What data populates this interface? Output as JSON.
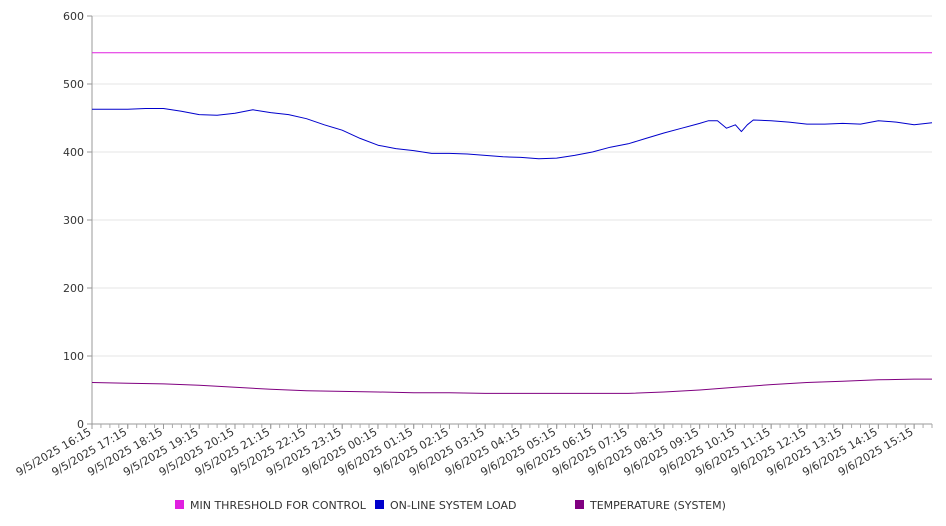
{
  "chart_data": {
    "type": "line",
    "title": "",
    "xlabel": "",
    "ylabel": "",
    "ylim": [
      0,
      600
    ],
    "yticks": [
      0,
      100,
      200,
      300,
      400,
      500,
      600
    ],
    "xticks": [
      "9/5/2025 16:15",
      "9/5/2025 17:15",
      "9/5/2025 18:15",
      "9/5/2025 19:15",
      "9/5/2025 20:15",
      "9/5/2025 21:15",
      "9/5/2025 22:15",
      "9/5/2025 23:15",
      "9/6/2025 00:15",
      "9/6/2025 01:15",
      "9/6/2025 02:15",
      "9/6/2025 03:15",
      "9/6/2025 04:15",
      "9/6/2025 05:15",
      "9/6/2025 06:15",
      "9/6/2025 07:15",
      "9/6/2025 08:15",
      "9/6/2025 09:15",
      "9/6/2025 10:15",
      "9/6/2025 11:15",
      "9/6/2025 12:15",
      "9/6/2025 13:15",
      "9/6/2025 14:15",
      "9/6/2025 15:15"
    ],
    "grid": true,
    "legend_position": "bottom",
    "series": [
      {
        "name": "MIN THRESHOLD FOR CONTROL",
        "color": "#e020e0",
        "x": [
          "9/5/2025 16:15",
          "9/6/2025 15:45"
        ],
        "values": [
          546,
          546
        ]
      },
      {
        "name": "ON-LINE SYSTEM LOAD",
        "color": "#0000cc",
        "x": [
          "9/5/2025 16:15",
          "9/5/2025 16:45",
          "9/5/2025 17:15",
          "9/5/2025 17:45",
          "9/5/2025 18:15",
          "9/5/2025 18:45",
          "9/5/2025 19:15",
          "9/5/2025 19:45",
          "9/5/2025 20:15",
          "9/5/2025 20:45",
          "9/5/2025 21:15",
          "9/5/2025 21:45",
          "9/5/2025 22:15",
          "9/5/2025 22:45",
          "9/5/2025 23:15",
          "9/5/2025 23:45",
          "9/6/2025 00:15",
          "9/6/2025 00:45",
          "9/6/2025 01:15",
          "9/6/2025 01:45",
          "9/6/2025 02:15",
          "9/6/2025 02:45",
          "9/6/2025 03:15",
          "9/6/2025 03:45",
          "9/6/2025 04:15",
          "9/6/2025 04:45",
          "9/6/2025 05:15",
          "9/6/2025 05:45",
          "9/6/2025 06:15",
          "9/6/2025 06:45",
          "9/6/2025 07:15",
          "9/6/2025 07:45",
          "9/6/2025 08:15",
          "9/6/2025 08:45",
          "9/6/2025 09:15",
          "9/6/2025 09:30",
          "9/6/2025 09:45",
          "9/6/2025 10:00",
          "9/6/2025 10:15",
          "9/6/2025 10:25",
          "9/6/2025 10:35",
          "9/6/2025 10:45",
          "9/6/2025 11:15",
          "9/6/2025 11:45",
          "9/6/2025 12:15",
          "9/6/2025 12:45",
          "9/6/2025 13:15",
          "9/6/2025 13:45",
          "9/6/2025 14:15",
          "9/6/2025 14:45",
          "9/6/2025 15:15",
          "9/6/2025 15:45"
        ],
        "values": [
          463,
          463,
          463,
          464,
          464,
          460,
          455,
          454,
          457,
          462,
          458,
          455,
          449,
          440,
          432,
          420,
          410,
          405,
          402,
          398,
          398,
          397,
          395,
          393,
          392,
          390,
          391,
          395,
          400,
          407,
          412,
          420,
          428,
          435,
          442,
          446,
          446,
          435,
          440,
          430,
          440,
          447,
          446,
          444,
          441,
          441,
          442,
          441,
          446,
          444,
          440,
          443
        ]
      },
      {
        "name": "TEMPERATURE (SYSTEM)",
        "color": "#800080",
        "x": [
          "9/5/2025 16:15",
          "9/5/2025 17:15",
          "9/5/2025 18:15",
          "9/5/2025 19:15",
          "9/5/2025 20:15",
          "9/5/2025 21:15",
          "9/5/2025 22:15",
          "9/5/2025 23:15",
          "9/6/2025 00:15",
          "9/6/2025 01:15",
          "9/6/2025 02:15",
          "9/6/2025 03:15",
          "9/6/2025 04:15",
          "9/6/2025 05:15",
          "9/6/2025 06:15",
          "9/6/2025 07:15",
          "9/6/2025 08:15",
          "9/6/2025 09:15",
          "9/6/2025 10:15",
          "9/6/2025 11:15",
          "9/6/2025 12:15",
          "9/6/2025 13:15",
          "9/6/2025 14:15",
          "9/6/2025 15:15",
          "9/6/2025 15:45"
        ],
        "values": [
          61,
          60,
          59,
          57,
          54,
          51,
          49,
          48,
          47,
          46,
          46,
          45,
          45,
          45,
          45,
          45,
          47,
          50,
          54,
          58,
          61,
          63,
          65,
          66,
          66
        ]
      }
    ]
  }
}
